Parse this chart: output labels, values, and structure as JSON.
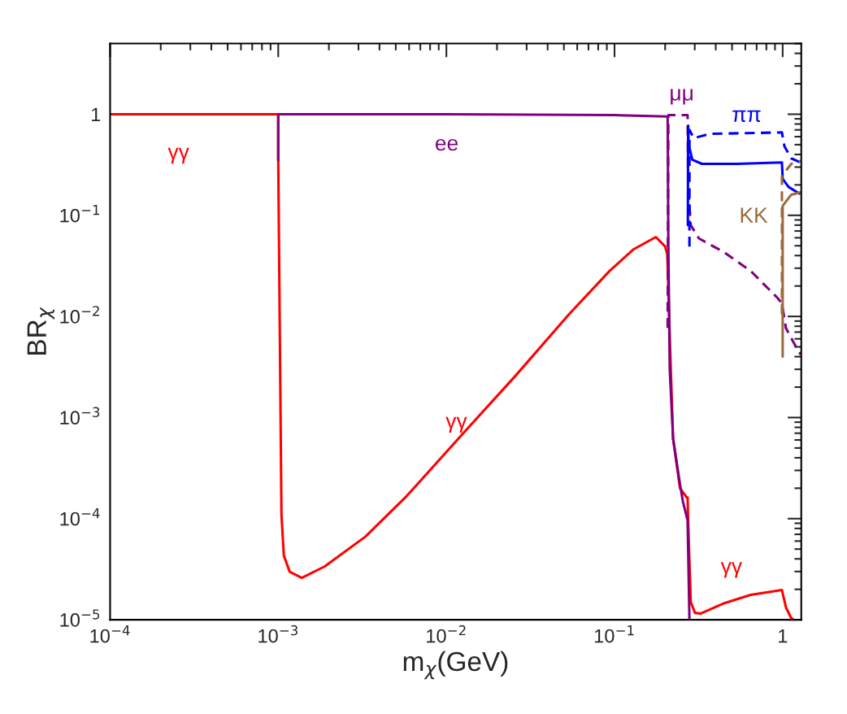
{
  "chart_data": {
    "type": "line",
    "xlabel": "m$_{χ}$(GeV)",
    "ylabel": "BR$_{χ}$",
    "log": "xy",
    "grid": false,
    "legend": false,
    "xlim": [
      0.0001,
      1.29
    ],
    "ylim": [
      1e-05,
      5
    ],
    "xticks": [
      {
        "value": 0.0001,
        "label": "10$^{−4}$"
      },
      {
        "value": 0.001,
        "label": "10$^{−3}$"
      },
      {
        "value": 0.01,
        "label": "10$^{−2}$"
      },
      {
        "value": 0.1,
        "label": "10$^{−1}$"
      },
      {
        "value": 1,
        "label": "1"
      }
    ],
    "yticks": [
      {
        "value": 1e-05,
        "label": "10$^{−5}$"
      },
      {
        "value": 0.0001,
        "label": "10$^{−4}$"
      },
      {
        "value": 0.001,
        "label": "10$^{−3}$"
      },
      {
        "value": 0.01,
        "label": "10$^{−2}$"
      },
      {
        "value": 0.1,
        "label": "10$^{−1}$"
      },
      {
        "value": 1,
        "label": "1"
      }
    ],
    "series": [
      {
        "name": "γγ",
        "color": "#ff0000",
        "line_style": "solid",
        "x": [
          0.0001,
          0.0003,
          0.001,
          0.001,
          0.001045,
          0.00108,
          0.00117,
          0.00138,
          0.00189,
          0.0033,
          0.0058,
          0.0121,
          0.0255,
          0.0536,
          0.0935,
          0.13,
          0.176,
          0.2,
          0.206,
          0.215,
          0.223,
          0.245,
          0.269,
          0.272,
          0.274,
          0.284,
          0.301,
          0.324,
          0.45,
          0.645,
          0.99,
          1.045,
          1.12,
          1.16
        ],
        "values": [
          1,
          1,
          1,
          0.35,
          0.000109,
          4.3e-05,
          2.98e-05,
          2.6e-05,
          3.37e-05,
          6.64e-05,
          0.000167,
          0.00065,
          0.00254,
          0.0105,
          0.0282,
          0.0462,
          0.061,
          0.0492,
          0.041,
          0.0039,
          0.00062,
          0.0002,
          0.000162,
          0.000162,
          9.6e-05,
          1.5e-05,
          1.17e-05,
          1.15e-05,
          1.46e-05,
          1.76e-05,
          1.97e-05,
          1.33e-05,
          1.05e-05,
          1e-05
        ]
      },
      {
        "name": "ee",
        "color": "#800080",
        "line_style": "solid",
        "x": [
          0.001,
          0.001,
          0.01,
          0.1,
          0.207,
          0.209,
          0.213,
          0.223,
          0.245,
          0.255,
          0.272,
          0.279
        ],
        "values": [
          0.35,
          1,
          1,
          0.98,
          0.95,
          0.05,
          0.003,
          0.00062,
          0.00022,
          0.000148,
          9.6e-05,
          1e-05
        ]
      },
      {
        "name": "μμ",
        "color": "#800080",
        "line_style": "dashed",
        "x": [
          0.207,
          0.209,
          0.272,
          0.274,
          0.284,
          0.318,
          0.445,
          0.645,
          0.933,
          0.99,
          1.045,
          1.17,
          1.28
        ],
        "values": [
          0.0077,
          0.98,
          0.98,
          0.2,
          0.08,
          0.059,
          0.0435,
          0.0282,
          0.0152,
          0.0135,
          0.0077,
          0.0054,
          0.0042
        ]
      },
      {
        "name": "ππ",
        "color": "#0000ff",
        "line_style": "solid",
        "x": [
          0.273,
          0.274,
          0.276,
          0.29,
          0.331,
          0.535,
          0.99,
          1.0,
          1.084,
          1.256
        ],
        "values": [
          0.08,
          0.77,
          0.5,
          0.355,
          0.323,
          0.323,
          0.333,
          0.23,
          0.191,
          0.164
        ]
      },
      {
        "color": "#0000ff",
        "line_style": "dashed",
        "x": [
          0.279,
          0.279,
          0.296,
          0.369,
          0.99,
          1.025,
          1.125,
          1.28
        ],
        "values": [
          0.049,
          0.7,
          0.58,
          0.64,
          0.66,
          0.48,
          0.366,
          0.333
        ]
      },
      {
        "name": "KK",
        "color": "#9b6b3c",
        "line_style": "solid",
        "x": [
          1.0,
          1.0,
          1.125,
          1.28
        ],
        "values": [
          0.004,
          0.124,
          0.16,
          0.169
        ]
      },
      {
        "color": "#9b6b3c",
        "line_style": "dashed",
        "x": [
          0.99,
          0.99,
          1.125,
          1.28
        ],
        "values": [
          0.0105,
          0.245,
          0.323,
          0.344
        ]
      }
    ]
  }
}
